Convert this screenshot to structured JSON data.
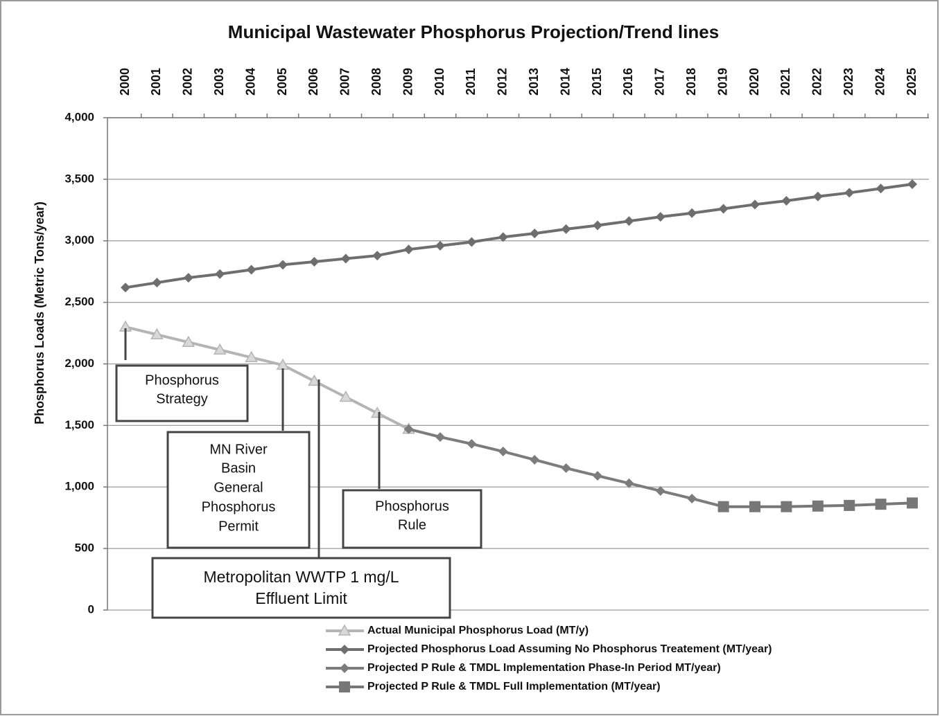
{
  "chart_data": {
    "type": "line",
    "title": "Municipal  Wastewater Phosphorus Projection/Trend lines",
    "y_label": "Phosphorus Loads (Metric Tons/year)",
    "categories": [
      "2000",
      "2001",
      "2002",
      "2003",
      "2004",
      "2005",
      "2006",
      "2007",
      "2008",
      "2009",
      "2010",
      "2011",
      "2012",
      "2013",
      "2014",
      "2015",
      "2016",
      "2017",
      "2018",
      "2019",
      "2020",
      "2021",
      "2022",
      "2023",
      "2024",
      "2025"
    ],
    "ylim": [
      0,
      4000
    ],
    "yticks": [
      0,
      500,
      {
        "value": 1000,
        "label": "1,000"
      },
      {
        "value": 1500,
        "label": "1,500"
      },
      {
        "value": 2000,
        "label": "2,000"
      },
      {
        "value": 2500,
        "label": "2,500"
      },
      {
        "value": 3000,
        "label": "3,000"
      },
      {
        "value": 3500,
        "label": "3,500"
      },
      {
        "value": 4000,
        "label": "4,000"
      }
    ],
    "grid": true,
    "series": [
      {
        "name": "Actual Municipal Phosphorus Load (MT/y)",
        "color": "#b4b4b4",
        "marker": "triangle",
        "values": [
          2300,
          2238,
          2176,
          2114,
          2052,
          1990,
          1860,
          1730,
          1600,
          1470,
          null,
          null,
          null,
          null,
          null,
          null,
          null,
          null,
          null,
          null,
          null,
          null,
          null,
          null,
          null,
          null
        ]
      },
      {
        "name": "Projected Phosphorus Load Assuming No Phosphorus Treatement (MT/year)",
        "color": "#6e6e6e",
        "marker": "diamond",
        "values": [
          2620,
          2660,
          2700,
          2730,
          2765,
          2805,
          2830,
          2855,
          2880,
          2930,
          2960,
          2990,
          3030,
          3060,
          3095,
          3125,
          3160,
          3195,
          3225,
          3260,
          3295,
          3325,
          3360,
          3390,
          3425,
          3460
        ]
      },
      {
        "name": "Projected P Rule & TMDL Implementation Phase-In Period MT/year)",
        "color": "#7c7c7c",
        "marker": "diamond",
        "values": [
          null,
          null,
          null,
          null,
          null,
          null,
          null,
          null,
          null,
          1470,
          1406,
          1350,
          1288,
          1221,
          1153,
          1091,
          1030,
          968,
          906,
          840,
          null,
          null,
          null,
          null,
          null,
          null
        ]
      },
      {
        "name": "Projected P Rule & TMDL Full Implementation (MT/year)",
        "color": "#777777",
        "marker": "square",
        "values": [
          null,
          null,
          null,
          null,
          null,
          null,
          null,
          null,
          null,
          null,
          null,
          null,
          null,
          null,
          null,
          null,
          null,
          null,
          null,
          840,
          840,
          840,
          845,
          850,
          860,
          870
        ]
      }
    ],
    "annotations": [
      {
        "lines": [
          "Phosphorus",
          "Strategy"
        ]
      },
      {
        "lines": [
          "MN River",
          "Basin",
          "General",
          "Phosphorus",
          "Permit"
        ]
      },
      {
        "lines": [
          "Phosphorus",
          "Rule"
        ]
      },
      {
        "lines": [
          "Metropolitan WWTP 1 mg/L",
          "Effluent Limit"
        ]
      }
    ]
  }
}
